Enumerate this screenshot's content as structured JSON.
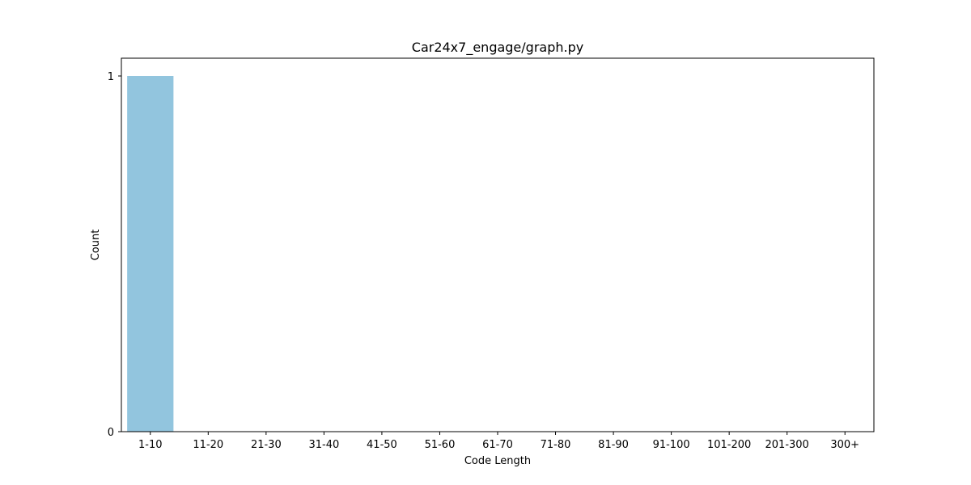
{
  "chart_data": {
    "type": "bar",
    "title": "Car24x7_engage/graph.py",
    "xlabel": "Code Length",
    "ylabel": "Count",
    "categories": [
      "1-10",
      "11-20",
      "21-30",
      "31-40",
      "41-50",
      "51-60",
      "61-70",
      "71-80",
      "81-90",
      "91-100",
      "101-200",
      "201-300",
      "300+"
    ],
    "values": [
      1,
      0,
      0,
      0,
      0,
      0,
      0,
      0,
      0,
      0,
      0,
      0,
      0
    ],
    "ylim": [
      0,
      1.05
    ],
    "yticks": [
      0,
      1
    ],
    "grid": false,
    "bar_color": "#92c5de"
  }
}
